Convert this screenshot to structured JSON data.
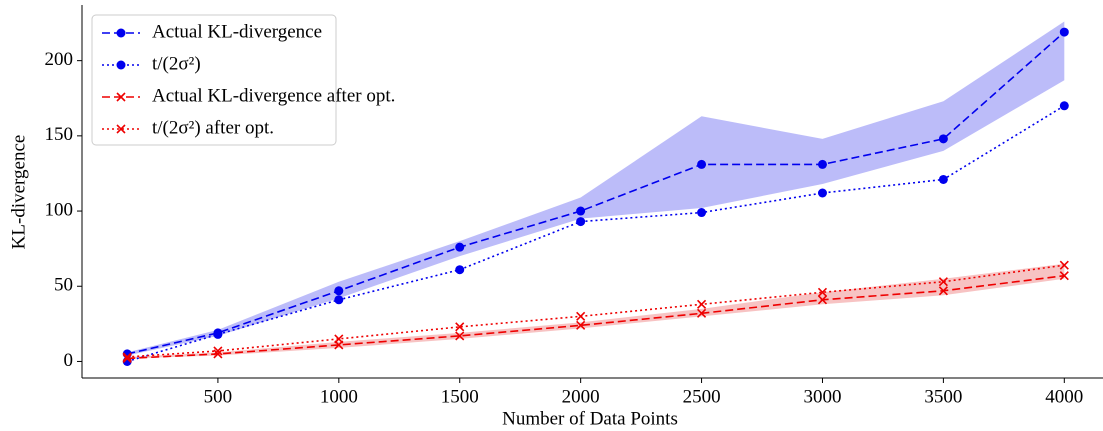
{
  "chart_data": {
    "type": "line",
    "xlabel": "Number of Data Points",
    "ylabel": "KL-divergence",
    "x": [
      125,
      500,
      1000,
      1500,
      2000,
      2500,
      3000,
      3500,
      4000
    ],
    "series": [
      {
        "name": "Actual KL-divergence",
        "color": "#0000ee",
        "linestyle": "dashed",
        "marker": "circle",
        "values": [
          5,
          19,
          47,
          76,
          100,
          131,
          131,
          148,
          219
        ]
      },
      {
        "name": "t/(2σ²)",
        "color": "#0000ee",
        "linestyle": "dotted",
        "marker": "circle",
        "values": [
          0,
          18,
          41,
          61,
          93,
          99,
          112,
          121,
          170
        ]
      },
      {
        "name": "Actual KL-divergence after opt.",
        "color": "#ee0000",
        "linestyle": "dashed",
        "marker": "x",
        "values": [
          2,
          5,
          11,
          17,
          24,
          32,
          41,
          47,
          57
        ]
      },
      {
        "name": "t/(2σ²) after opt.",
        "color": "#ee0000",
        "linestyle": "dotted",
        "marker": "x",
        "values": [
          3,
          7,
          15,
          23,
          30,
          38,
          46,
          53,
          64
        ]
      }
    ],
    "bands": [
      {
        "color": "#b0b0f8",
        "lower": [
          4,
          17,
          42,
          70,
          95,
          102,
          118,
          140,
          187
        ],
        "upper": [
          6,
          21,
          53,
          80,
          109,
          163,
          148,
          173,
          226
        ]
      },
      {
        "color": "#f6b8b8",
        "lower": [
          2,
          4,
          9,
          15,
          22,
          30,
          38,
          44,
          55
        ],
        "upper": [
          3,
          6,
          13,
          19,
          26,
          35,
          46,
          55,
          65
        ]
      }
    ],
    "xlim": [
      -62,
      4160
    ],
    "xticks": [
      500,
      1000,
      1500,
      2000,
      2500,
      3000,
      3500,
      4000
    ],
    "ylim": [
      -11,
      237
    ],
    "yticks": [
      0,
      50,
      100,
      150,
      200
    ],
    "legend": "upper-left",
    "grid": false
  }
}
